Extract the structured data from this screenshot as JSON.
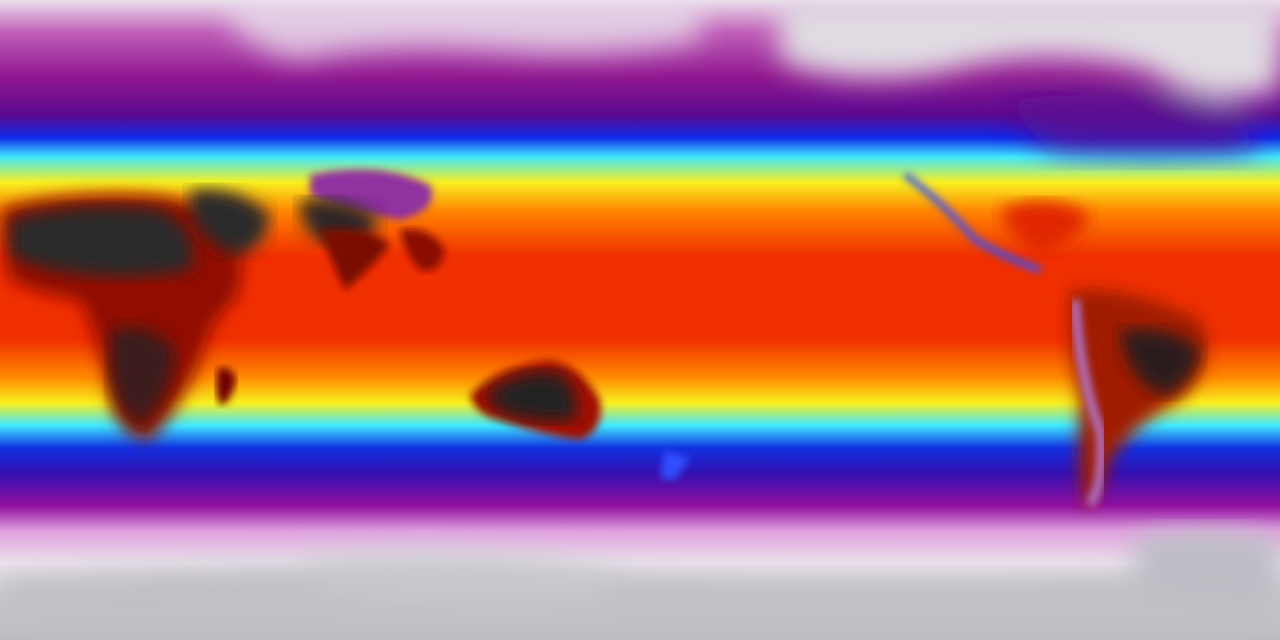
{
  "map": {
    "colormap": {
      "polar_white": "#ece0ec",
      "magenta": "#a01896",
      "purple": "#5a0a90",
      "blue": "#1028e8",
      "cyan": "#40e8ff",
      "yellow": "#f8f020",
      "orange": "#ff8400",
      "red": "#f02800",
      "dark_red": "#800000",
      "black": "#2a2a2a",
      "ice_grey": "#c4c4ca"
    }
  }
}
